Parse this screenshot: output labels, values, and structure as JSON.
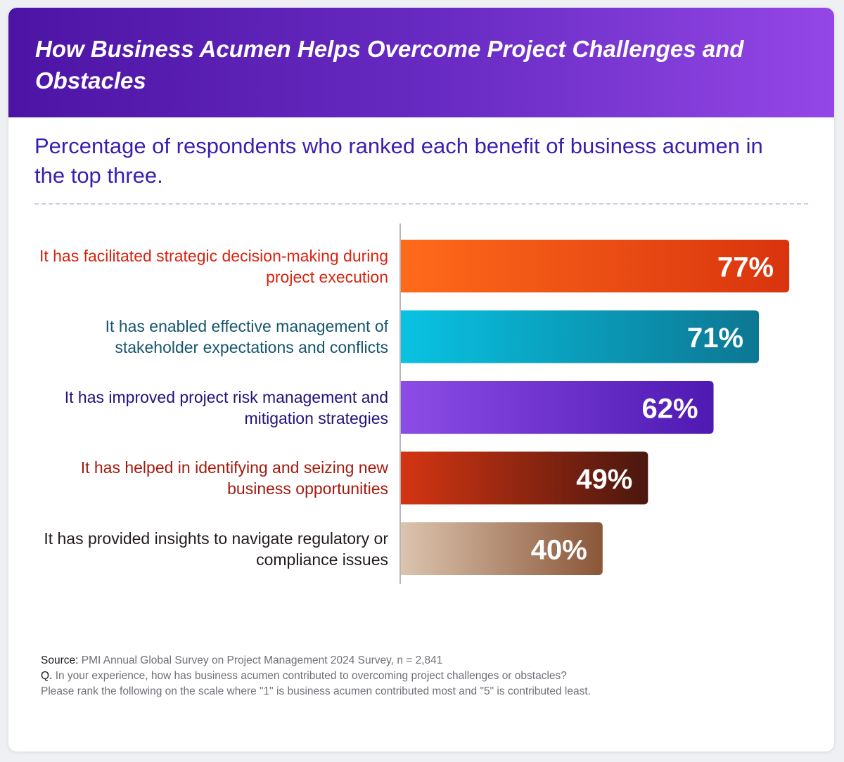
{
  "header": {
    "title": "How Business Acumen Helps Overcome Project Challenges and Obstacles"
  },
  "subtitle": "Percentage of respondents who ranked each benefit of business acumen in the top three.",
  "chart_data": {
    "type": "bar",
    "orientation": "horizontal",
    "categories": [
      "It has facilitated strategic decision-making during project execution",
      "It has enabled effective management of stakeholder expectations and conflicts",
      "It has improved project risk management and mitigation strategies",
      "It has helped in identifying and seizing new business opportunities",
      "It has provided insights to navigate regulatory or compliance issues"
    ],
    "values": [
      77,
      71,
      62,
      49,
      40
    ],
    "value_labels": [
      "77%",
      "71%",
      "62%",
      "49%",
      "40%"
    ],
    "xlim": [
      0,
      100
    ],
    "grid": false,
    "bar_colors": [
      {
        "from": "#ff6a1a",
        "to": "#d9340e"
      },
      {
        "from": "#09c2e2",
        "to": "#0c7793"
      },
      {
        "from": "#8d4ce6",
        "to": "#4e19b2"
      },
      {
        "from": "#d43512",
        "to": "#4a170f"
      },
      {
        "from": "#dcc4ae",
        "to": "#8a5638"
      }
    ],
    "label_colors": [
      "#d8230f",
      "#16566e",
      "#22137a",
      "#a41a0d",
      "#241a1c"
    ]
  },
  "footer": {
    "source_key": "Source:",
    "source_text": "PMI Annual Global Survey on Project Management 2024 Survey, n = 2,841",
    "question_key": "Q.",
    "question_text": "In your experience, how has business acumen contributed to overcoming project challenges or obstacles?",
    "question_text_2": "Please rank the following on the scale where \"1\" is business acumen contributed most and \"5\" is contributed least."
  }
}
